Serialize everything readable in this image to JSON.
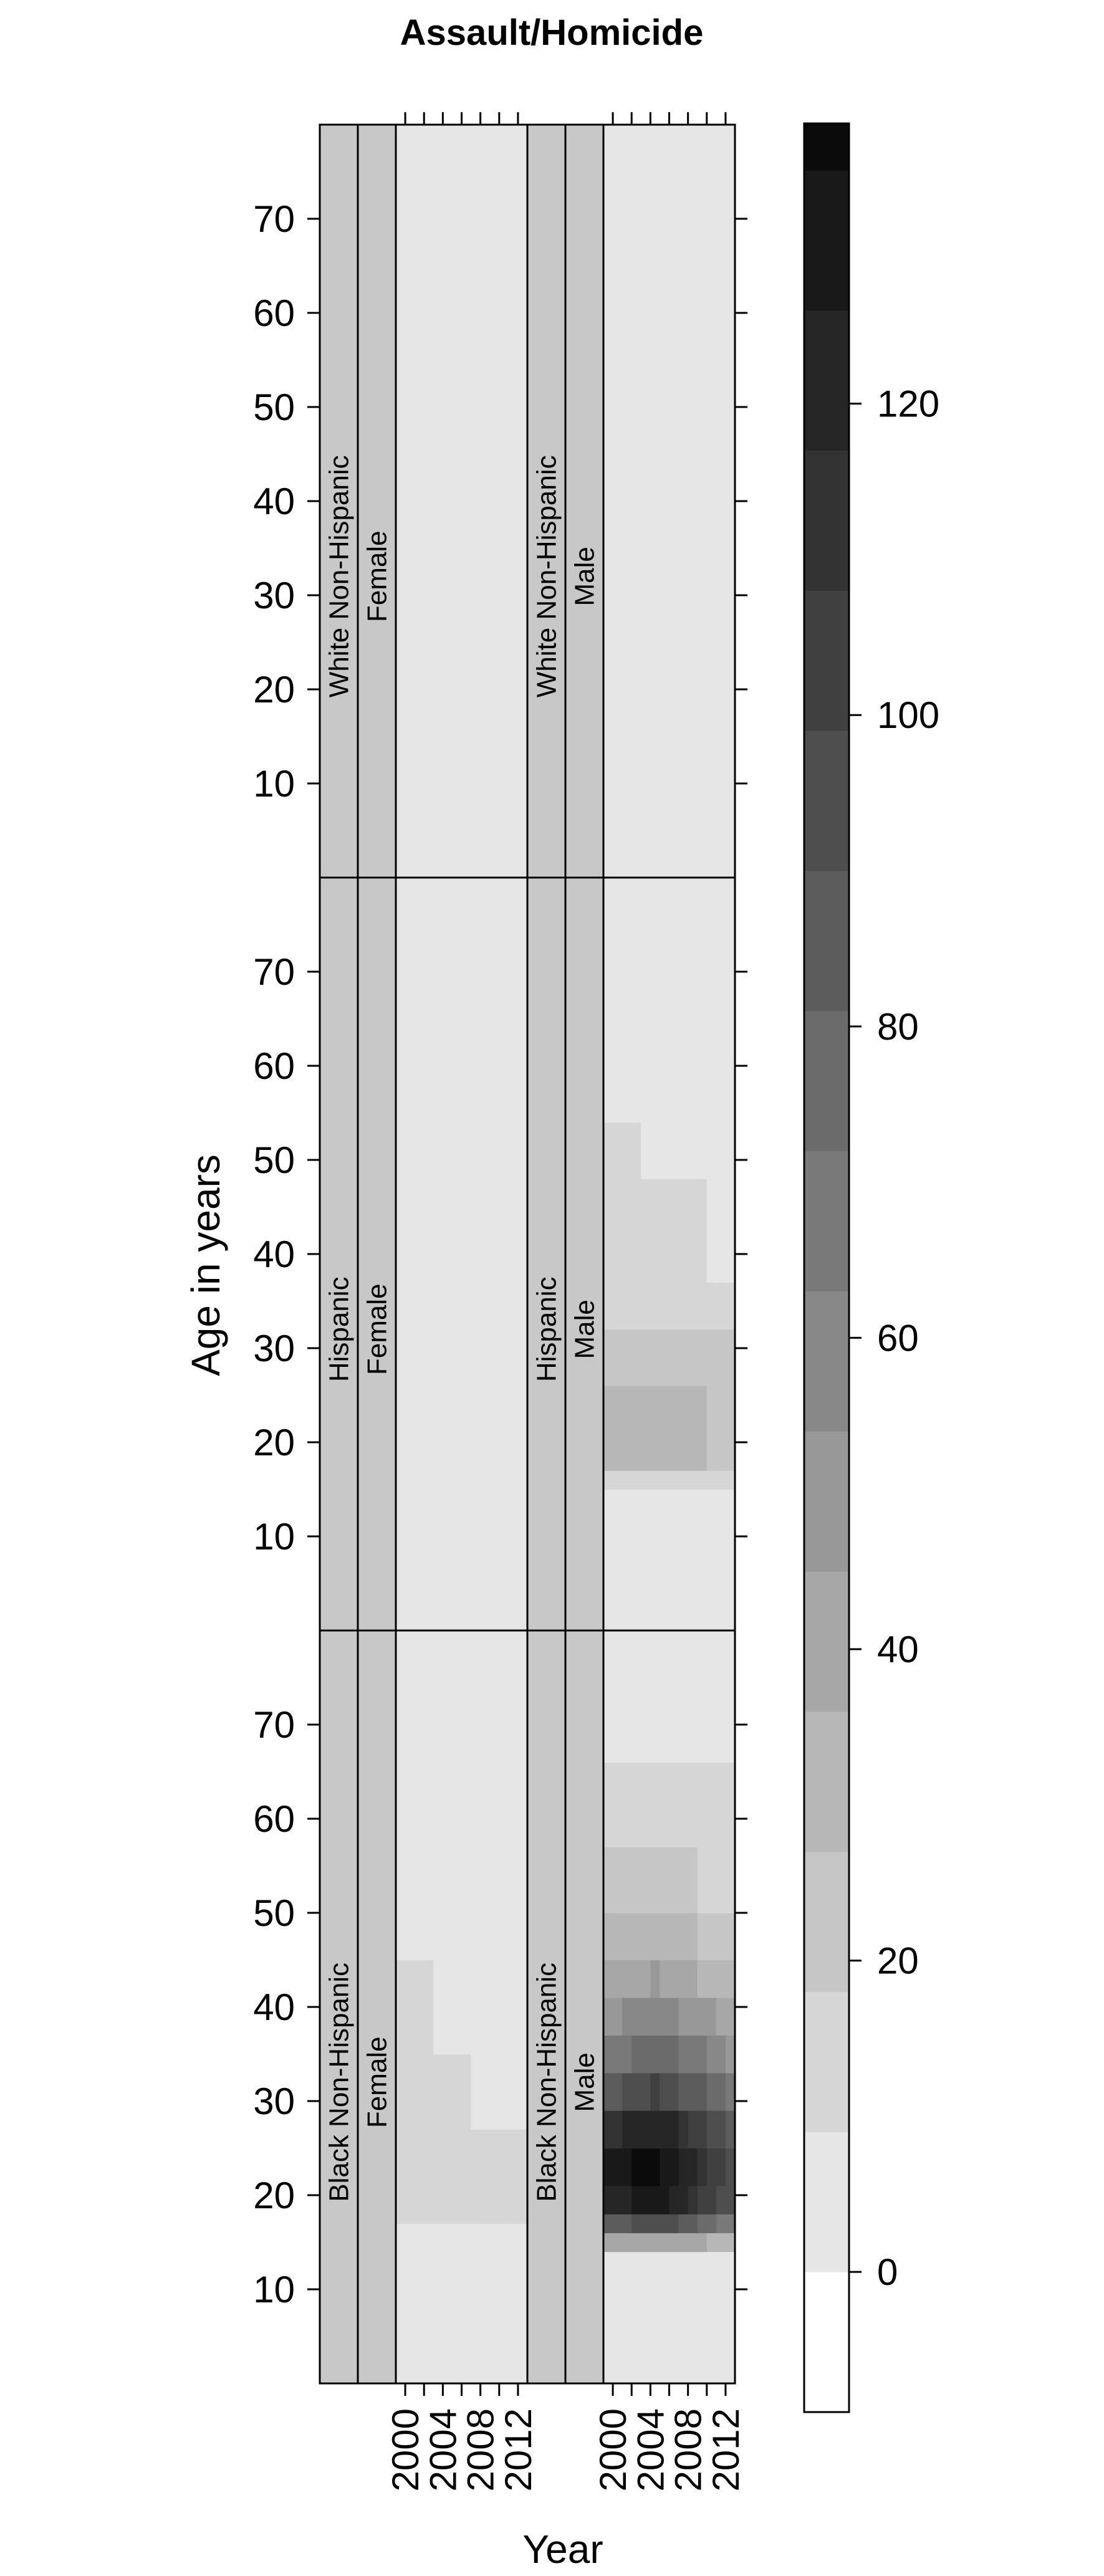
{
  "chart_data": {
    "type": "heatmap",
    "title": "Assault/Homicide",
    "xlabel": "Year",
    "ylabel": "Age in years",
    "x_ticks": [
      "2000",
      "2004",
      "2008",
      "2012"
    ],
    "y_ticks": [
      "10",
      "20",
      "30",
      "40",
      "50",
      "60",
      "70"
    ],
    "xlim": [
      1999,
      2013
    ],
    "ylim": [
      0,
      80
    ],
    "colorkey": {
      "ticks": [
        "0",
        "20",
        "40",
        "60",
        "80",
        "100",
        "120"
      ],
      "levels": [
        -9,
        0,
        9,
        18,
        27,
        36,
        45,
        54,
        63,
        72,
        81,
        90,
        99,
        108,
        117,
        126,
        135,
        138
      ],
      "colors": [
        "#ffffff",
        "#e6e6e6",
        "#d6d6d6",
        "#c6c6c6",
        "#b7b7b7",
        "#a7a7a7",
        "#989898",
        "#888888",
        "#797979",
        "#6b6b6b",
        "#5c5c5c",
        "#4e4e4e",
        "#404040",
        "#333333",
        "#262626",
        "#191919",
        "#0b0b0b"
      ]
    },
    "strip_color": "#c8c8c8",
    "grid": false,
    "panels": [
      {
        "strip1": "White Non-Hispanic",
        "strip2": "Female",
        "rows": [
          {
            "age_from": 0,
            "age_to": 80,
            "values": [
              2,
              2,
              2,
              2,
              2,
              2,
              2,
              2,
              2,
              2,
              2,
              2,
              2,
              2
            ]
          }
        ]
      },
      {
        "strip1": "White Non-Hispanic",
        "strip2": "Male",
        "rows": [
          {
            "age_from": 0,
            "age_to": 80,
            "values": [
              4,
              4,
              4,
              4,
              4,
              4,
              4,
              4,
              4,
              4,
              4,
              4,
              4,
              4
            ]
          }
        ]
      },
      {
        "strip1": "Hispanic",
        "strip2": "Female",
        "rows": [
          {
            "age_from": 0,
            "age_to": 80,
            "values": [
              3,
              3,
              3,
              3,
              3,
              3,
              3,
              3,
              3,
              3,
              3,
              3,
              3,
              3
            ]
          }
        ]
      },
      {
        "strip1": "Hispanic",
        "strip2": "Male",
        "rows": [
          {
            "age_from": 0,
            "age_to": 15,
            "values": [
              4,
              4,
              4,
              4,
              4,
              4,
              4,
              4,
              4,
              4,
              4,
              4,
              4,
              4
            ]
          },
          {
            "age_from": 15,
            "age_to": 17,
            "values": [
              13,
              13,
              12,
              12,
              12,
              12,
              12,
              12,
              12,
              12,
              12,
              11,
              11,
              11
            ]
          },
          {
            "age_from": 17,
            "age_to": 26,
            "values": [
              31,
              32,
              31,
              31,
              30,
              31,
              30,
              29,
              29,
              28,
              28,
              26,
              25,
              25
            ]
          },
          {
            "age_from": 26,
            "age_to": 32,
            "values": [
              23,
              24,
              24,
              23,
              23,
              24,
              23,
              23,
              22,
              22,
              21,
              20,
              19,
              19
            ]
          },
          {
            "age_from": 32,
            "age_to": 37,
            "values": [
              18,
              18,
              18,
              18,
              18,
              18,
              17,
              17,
              17,
              17,
              16,
              16,
              15,
              15
            ]
          },
          {
            "age_from": 37,
            "age_to": 48,
            "values": [
              14,
              14,
              14,
              14,
              14,
              14,
              14,
              13,
              13,
              13,
              12,
              8,
              8,
              8
            ]
          },
          {
            "age_from": 48,
            "age_to": 54,
            "values": [
              11,
              11,
              11,
              11,
              8,
              8,
              8,
              8,
              8,
              7,
              7,
              7,
              7,
              7
            ]
          },
          {
            "age_from": 54,
            "age_to": 80,
            "values": [
              6,
              6,
              6,
              6,
              6,
              6,
              6,
              6,
              6,
              6,
              6,
              6,
              6,
              6
            ]
          }
        ]
      },
      {
        "strip1": "Black Non-Hispanic",
        "strip2": "Female",
        "rows": [
          {
            "age_from": 0,
            "age_to": 17,
            "values": [
              6,
              6,
              6,
              6,
              6,
              6,
              6,
              6,
              6,
              6,
              6,
              6,
              6,
              6
            ]
          },
          {
            "age_from": 17,
            "age_to": 27,
            "values": [
              11,
              11,
              10,
              11,
              11,
              10,
              11,
              10,
              10,
              11,
              10,
              10,
              11,
              10
            ]
          },
          {
            "age_from": 27,
            "age_to": 35,
            "values": [
              10,
              10,
              11,
              10,
              10,
              11,
              10,
              10,
              8,
              8,
              7,
              7,
              7,
              7
            ]
          },
          {
            "age_from": 35,
            "age_to": 45,
            "values": [
              10,
              10,
              10,
              10,
              8,
              7,
              7,
              7,
              7,
              7,
              7,
              7,
              7,
              7
            ]
          },
          {
            "age_from": 45,
            "age_to": 80,
            "values": [
              4,
              4,
              4,
              4,
              4,
              4,
              4,
              4,
              4,
              4,
              4,
              4,
              4,
              4
            ]
          }
        ]
      },
      {
        "strip1": "Black Non-Hispanic",
        "strip2": "Male",
        "rows": [
          {
            "age_from": 0,
            "age_to": 14,
            "values": [
              6,
              6,
              6,
              6,
              6,
              6,
              6,
              6,
              6,
              6,
              6,
              6,
              6,
              6
            ]
          },
          {
            "age_from": 14,
            "age_to": 16,
            "values": [
              40,
              40,
              42,
              42,
              45,
              45,
              44,
              44,
              43,
              40,
              38,
              36,
              34,
              34
            ]
          },
          {
            "age_from": 16,
            "age_to": 18,
            "values": [
              85,
              88,
              90,
              92,
              95,
              98,
              95,
              92,
              90,
              85,
              80,
              75,
              72,
              70
            ]
          },
          {
            "age_from": 18,
            "age_to": 21,
            "values": [
              118,
              120,
              124,
              128,
              130,
              132,
              128,
              124,
              120,
              114,
              108,
              100,
              95,
              92
            ]
          },
          {
            "age_from": 21,
            "age_to": 25,
            "values": [
              128,
              130,
              134,
              136,
              136,
              138,
              134,
              130,
              126,
              120,
              114,
              108,
              102,
              98
            ]
          },
          {
            "age_from": 25,
            "age_to": 29,
            "values": [
              112,
              115,
              118,
              120,
              122,
              124,
              120,
              118,
              112,
              108,
              102,
              98,
              92,
              88
            ]
          },
          {
            "age_from": 29,
            "age_to": 33,
            "values": [
              88,
              90,
              92,
              95,
              98,
              100,
              98,
              95,
              90,
              86,
              82,
              78,
              74,
              70
            ]
          },
          {
            "age_from": 33,
            "age_to": 37,
            "values": [
              68,
              70,
              72,
              74,
              76,
              78,
              76,
              74,
              70,
              66,
              64,
              60,
              56,
              54
            ]
          },
          {
            "age_from": 37,
            "age_to": 41,
            "values": [
              52,
              54,
              55,
              56,
              58,
              60,
              58,
              56,
              54,
              52,
              48,
              46,
              44,
              42
            ]
          },
          {
            "age_from": 41,
            "age_to": 45,
            "values": [
              40,
              42,
              42,
              44,
              44,
              46,
              44,
              42,
              40,
              38,
              36,
              34,
              32,
              30
            ]
          },
          {
            "age_from": 45,
            "age_to": 50,
            "values": [
              30,
              30,
              31,
              32,
              32,
              33,
              32,
              31,
              30,
              28,
              27,
              26,
              24,
              23
            ]
          },
          {
            "age_from": 50,
            "age_to": 57,
            "values": [
              20,
              21,
              21,
              22,
              22,
              22,
              21,
              21,
              20,
              19,
              18,
              18,
              17,
              16
            ]
          },
          {
            "age_from": 57,
            "age_to": 66,
            "values": [
              14,
              14,
              14,
              14,
              13,
              13,
              13,
              13,
              12,
              12,
              11,
              11,
              11,
              10
            ]
          },
          {
            "age_from": 66,
            "age_to": 80,
            "values": [
              9,
              9,
              9,
              9,
              9,
              9,
              8,
              8,
              8,
              8,
              8,
              8,
              8,
              8
            ]
          }
        ]
      }
    ]
  }
}
